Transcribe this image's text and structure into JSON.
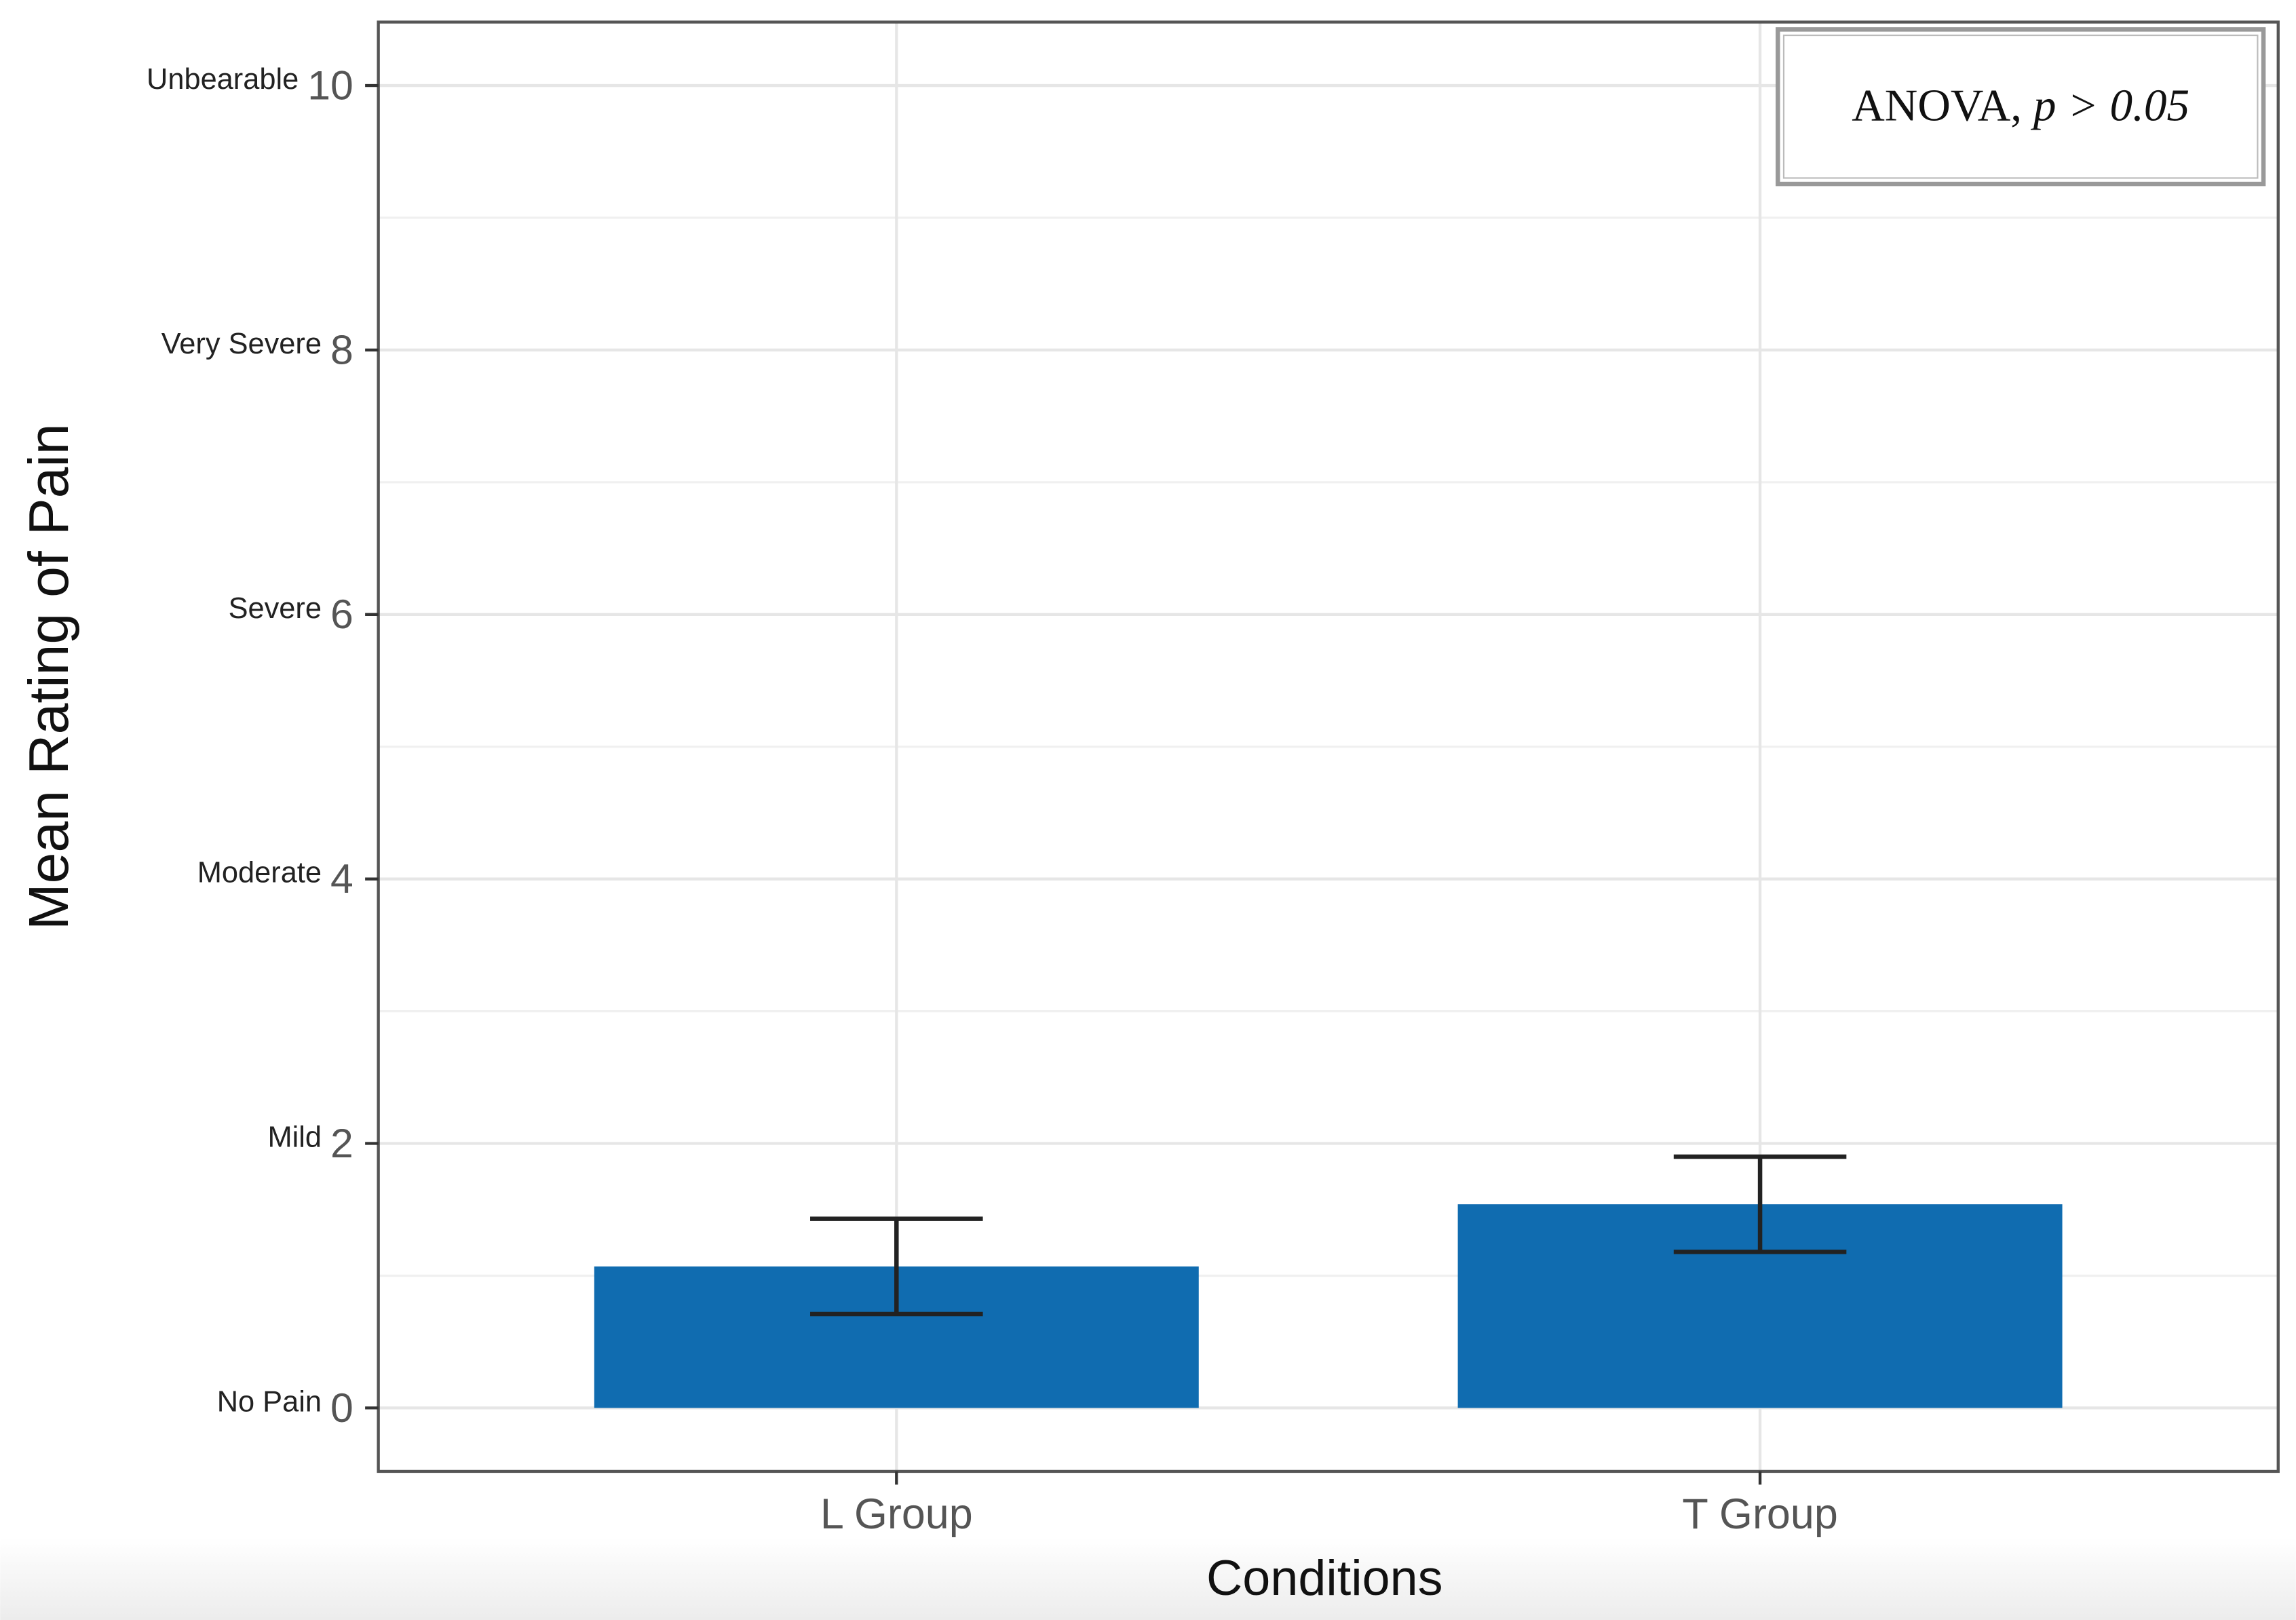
{
  "chart_data": {
    "type": "bar",
    "x_label": "Conditions",
    "y_label": "Mean Rating of Pain",
    "categories": [
      "L Group",
      "T Group"
    ],
    "values": [
      1.07,
      1.54
    ],
    "errors": [
      0.36,
      0.36
    ],
    "color": "#106cb0",
    "ylim": [
      -0.48,
      10.48
    ],
    "yticks": [
      0,
      2,
      4,
      6,
      8,
      10
    ],
    "ytick_descriptors": [
      "No Pain",
      "Mild",
      "Moderate",
      "Severe",
      "Very Severe",
      "Unbearable"
    ],
    "grid": true,
    "annotation": {
      "text": "ANOVA,",
      "italic": "p > 0.05"
    }
  }
}
